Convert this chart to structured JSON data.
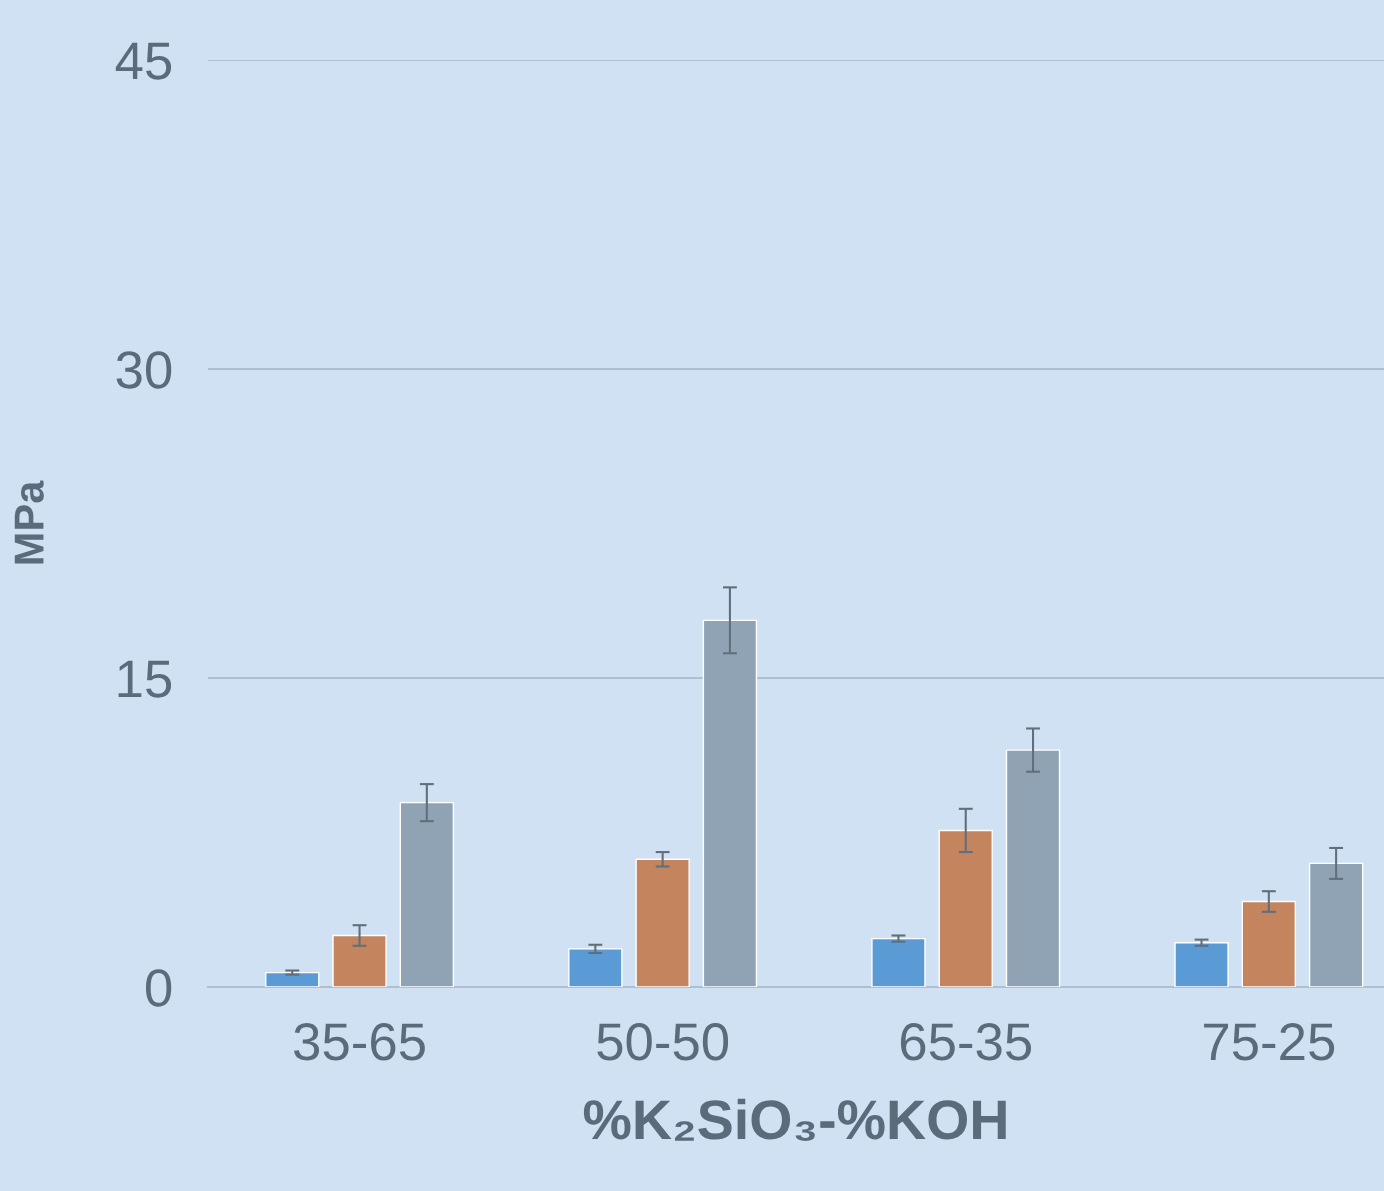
{
  "chart_data": {
    "type": "bar",
    "xlabel": "%K₂SiO₃-%KOH",
    "ylabel": "MPa",
    "categories": [
      "35-65",
      "50-50",
      "65-35",
      "75-25"
    ],
    "series": [
      {
        "color": "#5b9bd5",
        "values": [
          0.7,
          1.85,
          2.35,
          2.15
        ],
        "errors": [
          0.1,
          0.2,
          0.15,
          0.15
        ]
      },
      {
        "color": "#c4855e",
        "values": [
          2.5,
          6.2,
          7.6,
          4.15
        ],
        "errors": [
          0.5,
          0.35,
          1.05,
          0.5
        ]
      },
      {
        "color": "#8fa3b4",
        "values": [
          8.95,
          17.8,
          11.5,
          6.0
        ],
        "errors": [
          0.9,
          1.6,
          1.05,
          0.75
        ]
      }
    ],
    "ylim": [
      0,
      45
    ],
    "yticks": [
      0,
      15,
      30,
      45
    ],
    "grid": "y",
    "legend": false
  }
}
